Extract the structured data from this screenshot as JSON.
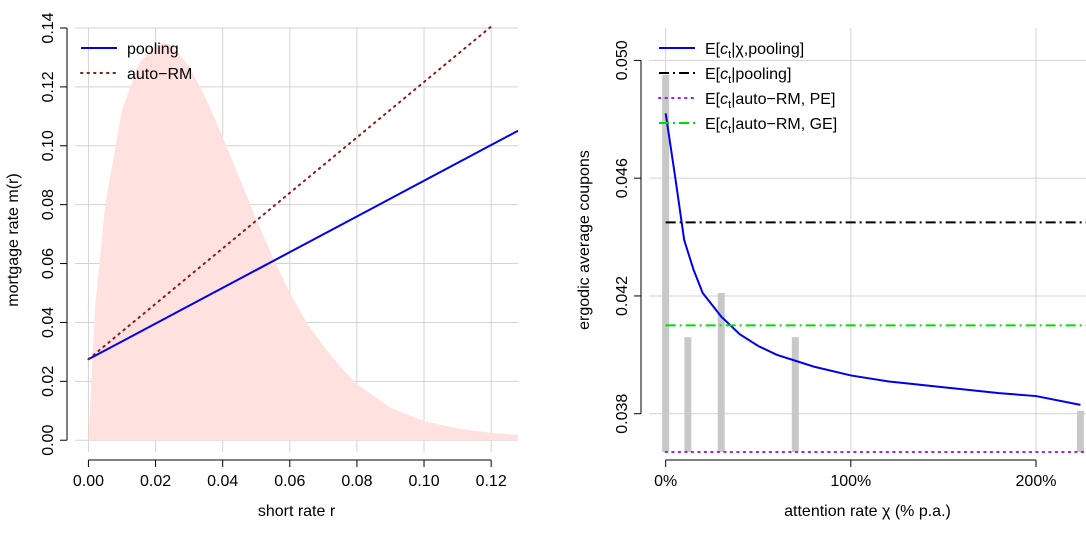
{
  "chart_data": [
    {
      "type": "line",
      "xlabel": "short rate r",
      "ylabel": "mortgage rate m(r)",
      "xlim": [
        -0.004,
        0.128
      ],
      "ylim": [
        -0.004,
        0.14
      ],
      "x_ticks": [
        0.0,
        0.02,
        0.04,
        0.06,
        0.08,
        0.1,
        0.12
      ],
      "x_tick_labels": [
        "0.00",
        "0.02",
        "0.04",
        "0.06",
        "0.08",
        "0.10",
        "0.12"
      ],
      "y_ticks": [
        0.0,
        0.02,
        0.04,
        0.06,
        0.08,
        0.1,
        0.12,
        0.14
      ],
      "y_tick_labels": [
        "0.00",
        "0.02",
        "0.04",
        "0.06",
        "0.08",
        "0.10",
        "0.12",
        "0.14"
      ],
      "grid": true,
      "legend_position": "top-left",
      "series": [
        {
          "name": "pooling",
          "color": "#0000ee",
          "style": "solid",
          "x": [
            0.0,
            0.128
          ],
          "y": [
            0.0275,
            0.1051
          ]
        },
        {
          "name": "auto−RM",
          "color": "#8b1a1a",
          "style": "dotted",
          "x": [
            0.0,
            0.12
          ],
          "y": [
            0.0275,
            0.1405
          ]
        }
      ],
      "density": {
        "color": "#ffe1df",
        "x": [
          0.0,
          0.002,
          0.005,
          0.01,
          0.015,
          0.02,
          0.022,
          0.025,
          0.03,
          0.035,
          0.04,
          0.045,
          0.05,
          0.055,
          0.06,
          0.065,
          0.07,
          0.075,
          0.08,
          0.09,
          0.1,
          0.11,
          0.12,
          0.128
        ],
        "y": [
          0.0,
          0.045,
          0.08,
          0.112,
          0.128,
          0.134,
          0.135,
          0.134,
          0.127,
          0.116,
          0.103,
          0.089,
          0.075,
          0.062,
          0.05,
          0.04,
          0.032,
          0.025,
          0.019,
          0.011,
          0.0065,
          0.004,
          0.0025,
          0.0018
        ]
      }
    },
    {
      "type": "line",
      "xlabel": "attention rate χ  (% p.a.)",
      "ylabel": "ergodic average coupons",
      "xlim": [
        -0.09,
        2.27
      ],
      "ylim": [
        0.0367,
        0.0511
      ],
      "x_ticks": [
        0.0,
        1.0,
        2.0
      ],
      "x_tick_labels": [
        "0%",
        "100%",
        "200%"
      ],
      "y_ticks": [
        0.038,
        0.042,
        0.046,
        0.05
      ],
      "y_tick_labels": [
        "0.038",
        "0.042",
        "0.046",
        "0.050"
      ],
      "grid": true,
      "legend_position": "top-left",
      "series": [
        {
          "name": "E[c|χ,pooling]",
          "color": "#0000ee",
          "style": "solid",
          "x": [
            0.0,
            0.05,
            0.1,
            0.15,
            0.2,
            0.25,
            0.3,
            0.4,
            0.5,
            0.6,
            0.8,
            1.0,
            1.2,
            1.5,
            1.8,
            2.0,
            2.24
          ],
          "y": [
            0.0482,
            0.0461,
            0.0439,
            0.0429,
            0.0421,
            0.0417,
            0.0413,
            0.0407,
            0.0403,
            0.04,
            0.0396,
            0.0393,
            0.0391,
            0.0389,
            0.0387,
            0.0386,
            0.0383
          ]
        },
        {
          "name": "E[c|pooling]",
          "color": "#000000",
          "style": "dashdot",
          "x": [
            0.0,
            2.27
          ],
          "y": [
            0.0445,
            0.0445
          ]
        },
        {
          "name": "E[c|auto−RM, PE]",
          "color": "#a020f0",
          "style": "dotted",
          "x": [
            0.0,
            2.27
          ],
          "y": [
            0.0367,
            0.0367
          ]
        },
        {
          "name": "E[c|auto−RM, GE]",
          "color": "#00dd00",
          "style": "dashdot",
          "x": [
            0.0,
            2.27
          ],
          "y": [
            0.041,
            0.041
          ]
        }
      ],
      "bars": {
        "color": "#c8c8c8",
        "x": [
          0.0,
          0.12,
          0.3,
          0.7,
          2.24
        ],
        "height": [
          0.0495,
          0.0406,
          0.0421,
          0.0406,
          0.0381
        ]
      },
      "legend_entries": [
        {
          "base": "E[",
          "c": "c",
          "t": "t",
          "rest": "|χ,pooling]"
        },
        {
          "base": "E[",
          "c": "c",
          "t": "t",
          "rest": "|pooling]"
        },
        {
          "base": "E[",
          "c": "c",
          "t": "t",
          "rest": "|auto−RM, PE]"
        },
        {
          "base": "E[",
          "c": "c",
          "t": "t",
          "rest": "|auto−RM, GE]"
        }
      ]
    }
  ]
}
